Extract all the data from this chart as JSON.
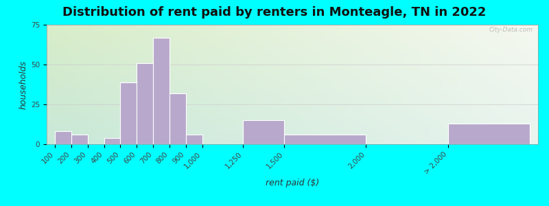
{
  "title": "Distribution of rent paid by renters in Monteagle, TN in 2022",
  "xlabel": "rent paid ($)",
  "ylabel": "households",
  "tick_labels": [
    "100",
    "200",
    "300",
    "400",
    "500",
    "600",
    "700",
    "800",
    "900",
    "1,000",
    "1,250",
    "1,500",
    "2,000",
    "> 2,000"
  ],
  "tick_positions": [
    100,
    200,
    300,
    400,
    500,
    600,
    700,
    800,
    900,
    1000,
    1250,
    1500,
    2000,
    2500
  ],
  "bar_heights": [
    8,
    6,
    0,
    4,
    39,
    51,
    67,
    32,
    6,
    0,
    15,
    6,
    0,
    13
  ],
  "bar_color": "#b8a9cc",
  "bar_edge_color": "#ffffff",
  "ylim": [
    0,
    75
  ],
  "yticks": [
    0,
    25,
    50,
    75
  ],
  "title_fontsize": 13,
  "label_fontsize": 9,
  "tick_fontsize": 7.5,
  "background_outer": "#00ffff",
  "watermark_text": "City-Data.com"
}
